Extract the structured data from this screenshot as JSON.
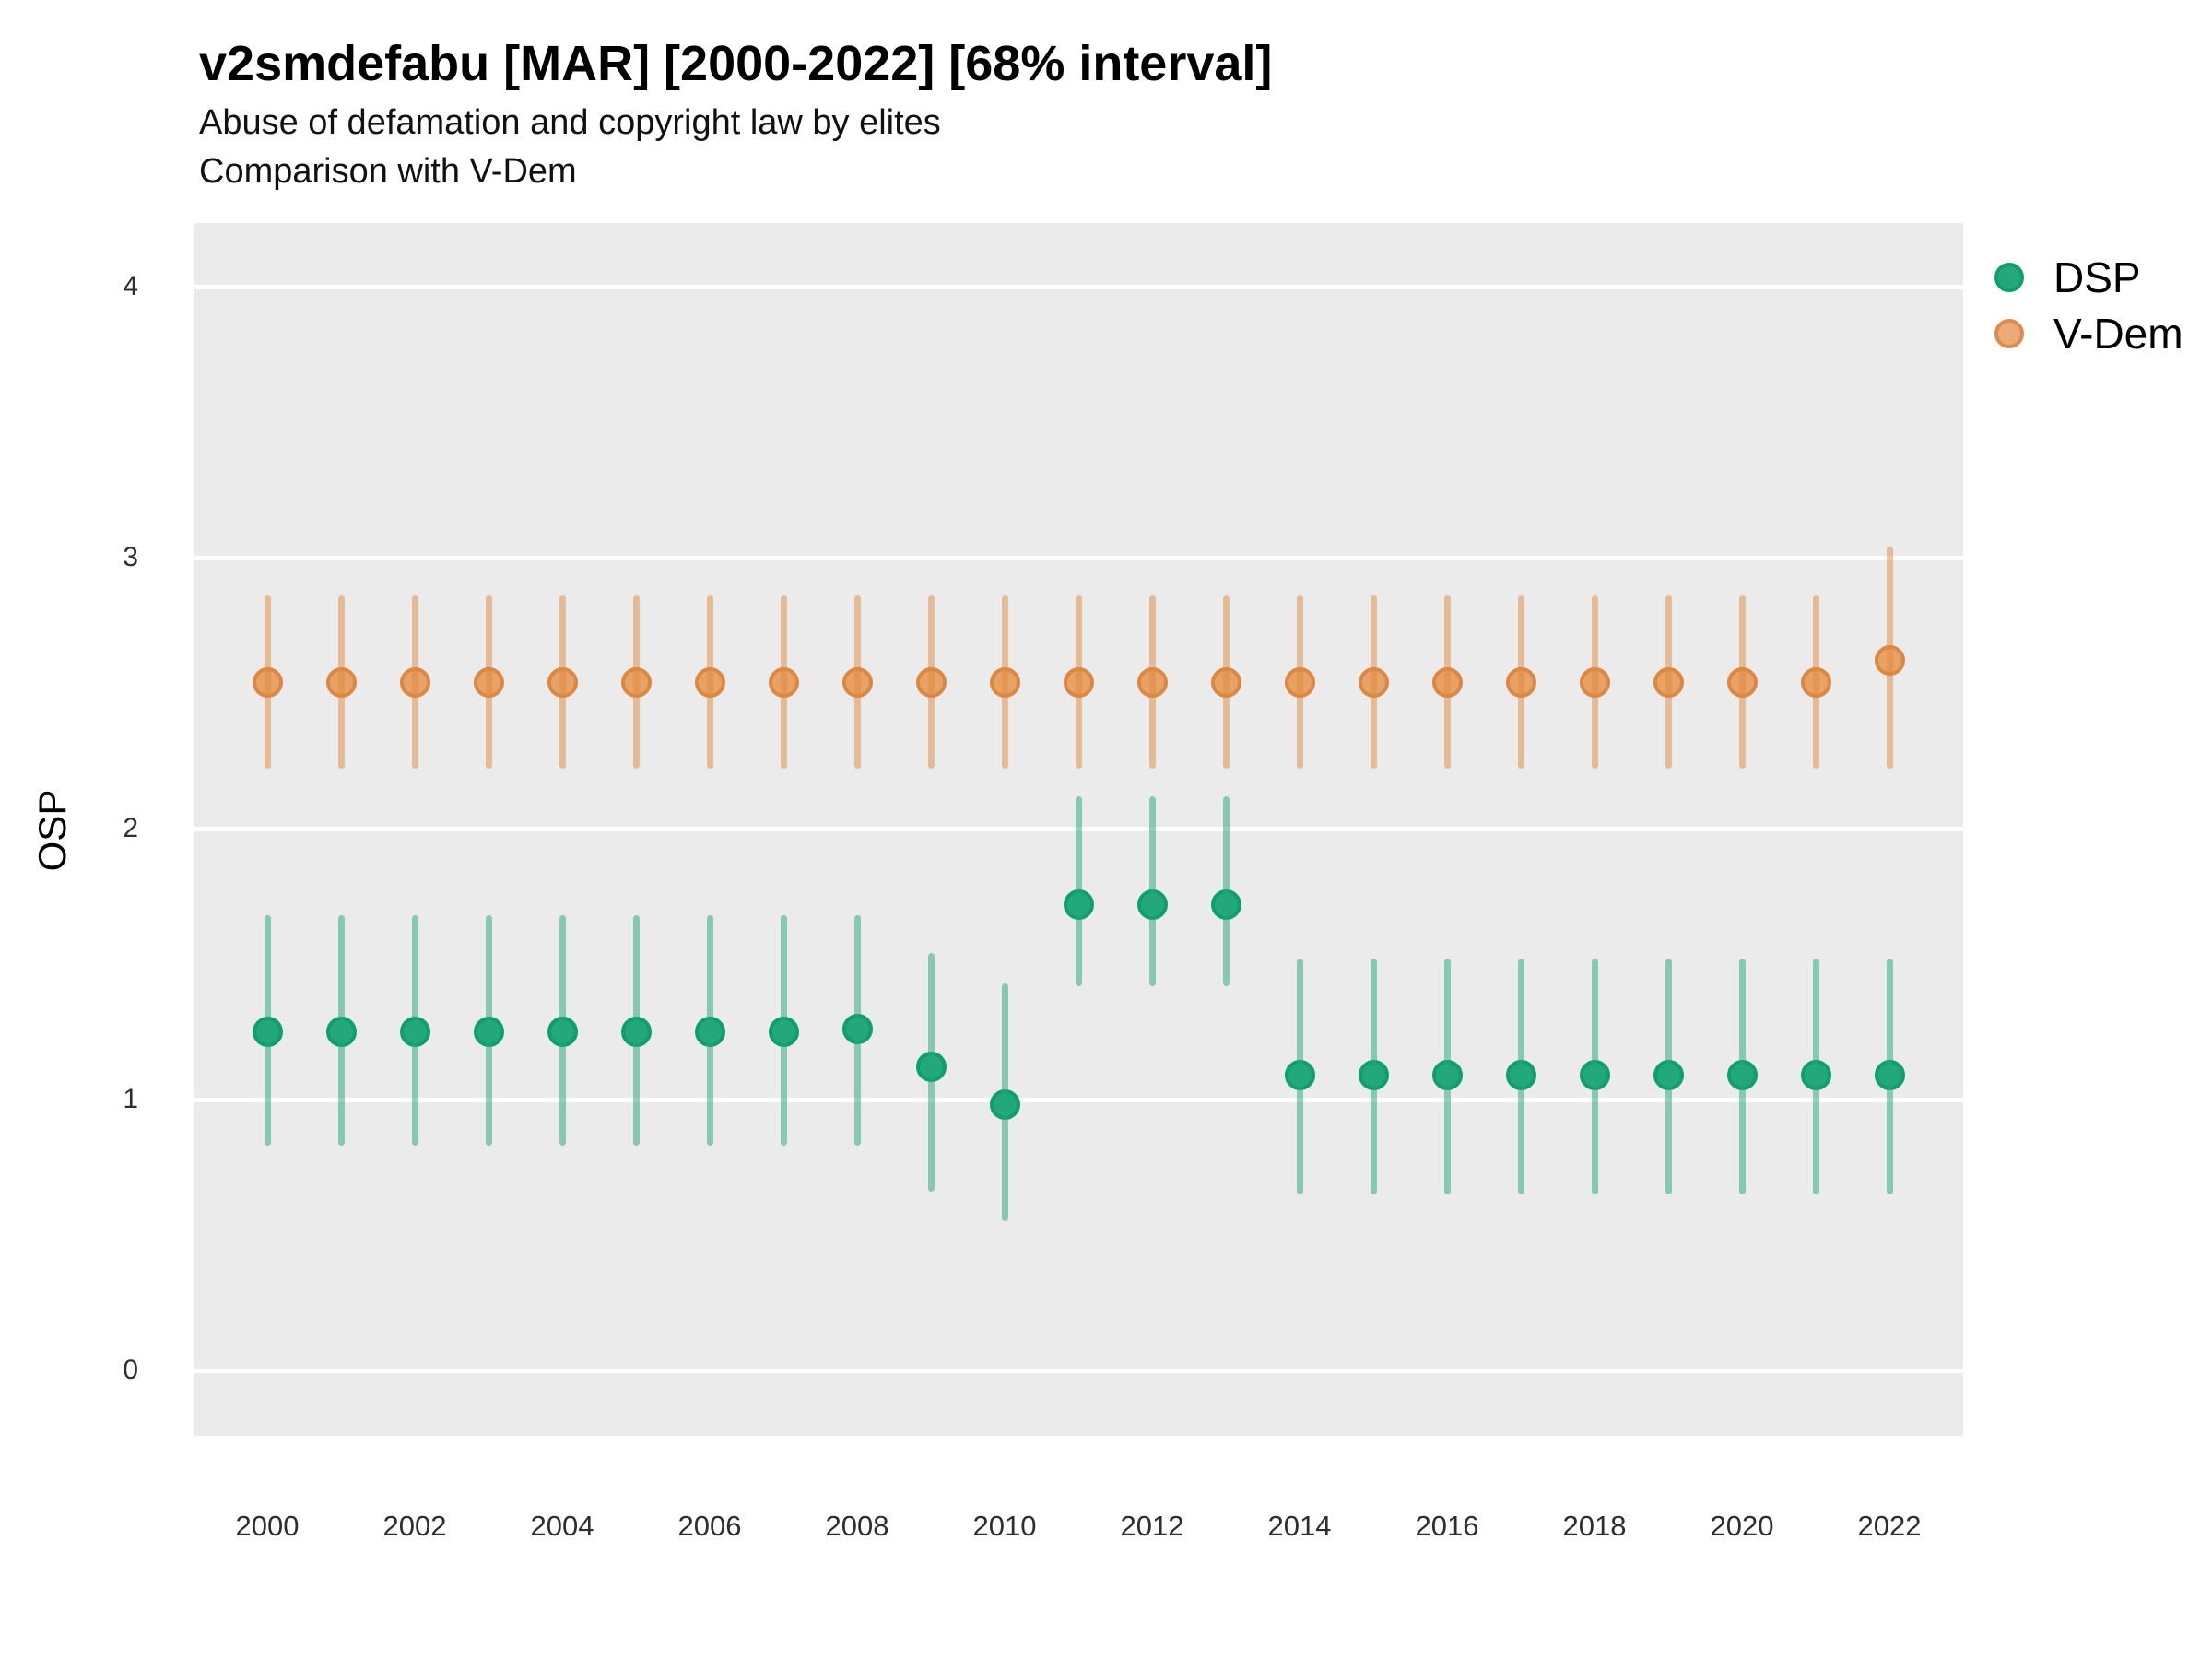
{
  "header": {
    "title": "v2smdefabu [MAR] [2000-2022] [68% interval]",
    "subtitle": "Abuse of defamation and copyright law by elites",
    "subtitle2": "Comparison with V-Dem"
  },
  "axes": {
    "y_label": "OSP",
    "y_ticks": [
      0,
      1,
      2,
      3,
      4
    ],
    "x_ticks": [
      2000,
      2002,
      2004,
      2006,
      2008,
      2010,
      2012,
      2014,
      2016,
      2018,
      2020,
      2022
    ]
  },
  "legend": {
    "position": "right",
    "items": [
      {
        "label": "DSP",
        "fill": "#22a87c",
        "stroke": "#0f9e6d"
      },
      {
        "label": "V-Dem",
        "fill": "#ebaa78",
        "stroke": "#dd8c4c"
      }
    ]
  },
  "colors": {
    "panel_bg": "#ebebeb",
    "grid": "#ffffff",
    "dsp_fill": "#22a87c",
    "dsp_stroke": "#0f9e6d",
    "dsp_range": "rgba(34,168,124,0.5)",
    "vdem_fill": "#e9a266",
    "vdem_stroke": "#dc8742",
    "vdem_range": "rgba(224,138,66,0.5)"
  },
  "chart_data": {
    "type": "pointrange (dot with 68% interval bars)",
    "title": "v2smdefabu [MAR] [2000-2022] [68% interval]",
    "xlabel": "",
    "ylabel": "OSP",
    "ylim": [
      0,
      4
    ],
    "grid": "horizontal major gridlines only, white on gray panel",
    "legend_position": "right",
    "interval": "68%",
    "x": [
      2000,
      2001,
      2002,
      2003,
      2004,
      2005,
      2006,
      2007,
      2008,
      2009,
      2010,
      2011,
      2012,
      2013,
      2014,
      2015,
      2016,
      2017,
      2018,
      2019,
      2020,
      2021,
      2022
    ],
    "series": [
      {
        "name": "DSP",
        "fill": "#22a87c",
        "stroke": "#0f9e6d",
        "range_color": "rgba(34,168,124,0.5)",
        "values": [
          1.25,
          1.25,
          1.25,
          1.25,
          1.25,
          1.25,
          1.25,
          1.25,
          1.26,
          1.12,
          0.98,
          1.72,
          1.72,
          1.72,
          1.09,
          1.09,
          1.09,
          1.09,
          1.09,
          1.09,
          1.09,
          1.09,
          1.09
        ],
        "lo": [
          0.83,
          0.83,
          0.83,
          0.83,
          0.83,
          0.83,
          0.83,
          0.83,
          0.83,
          0.66,
          0.55,
          1.42,
          1.42,
          1.42,
          0.65,
          0.65,
          0.65,
          0.65,
          0.65,
          0.65,
          0.65,
          0.65,
          0.65
        ],
        "hi": [
          1.68,
          1.68,
          1.68,
          1.68,
          1.68,
          1.68,
          1.68,
          1.68,
          1.68,
          1.54,
          1.43,
          2.12,
          2.12,
          2.12,
          1.52,
          1.52,
          1.52,
          1.52,
          1.52,
          1.52,
          1.52,
          1.52,
          1.52
        ]
      },
      {
        "name": "V-Dem",
        "fill": "#e9a266",
        "stroke": "#dc8742",
        "range_color": "rgba(224,138,66,0.5)",
        "values": [
          2.54,
          2.54,
          2.54,
          2.54,
          2.54,
          2.54,
          2.54,
          2.54,
          2.54,
          2.54,
          2.54,
          2.54,
          2.54,
          2.54,
          2.54,
          2.54,
          2.54,
          2.54,
          2.54,
          2.54,
          2.54,
          2.54,
          2.62
        ],
        "lo": [
          2.22,
          2.22,
          2.22,
          2.22,
          2.22,
          2.22,
          2.22,
          2.22,
          2.22,
          2.22,
          2.22,
          2.22,
          2.22,
          2.22,
          2.22,
          2.22,
          2.22,
          2.22,
          2.22,
          2.22,
          2.22,
          2.22,
          2.22
        ],
        "hi": [
          2.86,
          2.86,
          2.86,
          2.86,
          2.86,
          2.86,
          2.86,
          2.86,
          2.86,
          2.86,
          2.86,
          2.86,
          2.86,
          2.86,
          2.86,
          2.86,
          2.86,
          2.86,
          2.86,
          2.86,
          2.86,
          2.86,
          3.04
        ]
      }
    ]
  }
}
